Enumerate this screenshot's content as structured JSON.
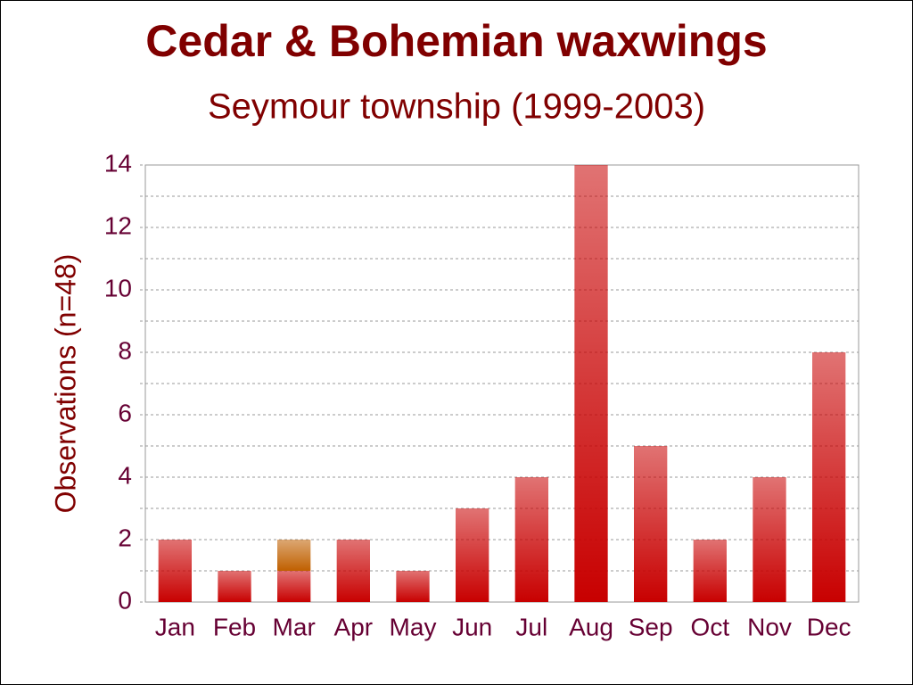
{
  "chart_data": {
    "type": "bar",
    "stacked": true,
    "title": "Cedar & Bohemian waxwings",
    "subtitle": "Seymour township (1999-2003)",
    "y_label": "Observations (n=48)",
    "categories": [
      "Jan",
      "Feb",
      "Mar",
      "Apr",
      "May",
      "Jun",
      "Jul",
      "Aug",
      "Sep",
      "Oct",
      "Nov",
      "Dec"
    ],
    "series": [
      {
        "color": "#c80000",
        "values": [
          2,
          1,
          1,
          2,
          1,
          3,
          4,
          14,
          5,
          2,
          4,
          8
        ]
      },
      {
        "color": "#c06000",
        "values": [
          0,
          0,
          1,
          0,
          0,
          0,
          0,
          0,
          0,
          0,
          0,
          0
        ]
      }
    ],
    "ylim": [
      0,
      14
    ],
    "yticks": [
      0,
      2,
      4,
      6,
      8,
      10,
      12,
      14
    ],
    "minor_yticks": [
      1,
      3,
      5,
      7,
      9,
      11,
      13
    ],
    "grid": true
  }
}
